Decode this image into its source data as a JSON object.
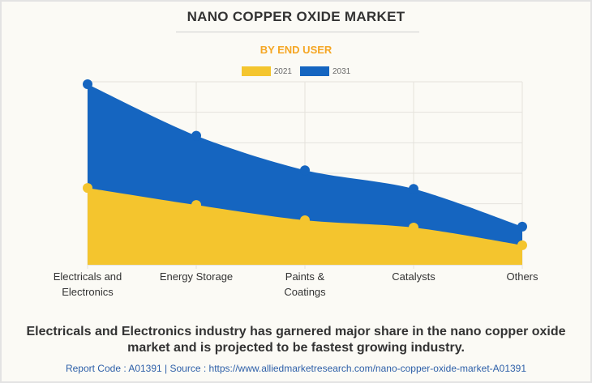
{
  "header": {
    "title": "NANO COPPER OXIDE MARKET",
    "subtitle": "BY END USER"
  },
  "colors": {
    "series_2021": "#f4c52e",
    "series_2031": "#1565c0",
    "subtitle": "#f5a623",
    "gridline": "#e4e2dc",
    "source_text": "#2d5fa8"
  },
  "chart_data": {
    "type": "area",
    "title": "NANO COPPER OXIDE MARKET",
    "subtitle": "BY END USER",
    "xlabel": "",
    "ylabel": "",
    "y_tick_labels_visible": false,
    "ylim": [
      0,
      6
    ],
    "grid": true,
    "legend_position": "top-center",
    "categories": [
      [
        "Electricals and",
        "Electronics"
      ],
      [
        "Energy Storage"
      ],
      [
        "Paints &",
        "Coatings"
      ],
      [
        "Catalysts"
      ],
      [
        "Others"
      ]
    ],
    "series": [
      {
        "name": "2031",
        "values": [
          5.92,
          4.23,
          3.1,
          2.49,
          1.25
        ]
      },
      {
        "name": "2021",
        "values": [
          2.52,
          1.96,
          1.46,
          1.22,
          0.64
        ]
      }
    ]
  },
  "legend": [
    {
      "label": "2021"
    },
    {
      "label": "2031"
    }
  ],
  "footer": {
    "caption": "Electricals and Electronics industry has garnered major share in the nano copper oxide market and is projected to be fastest growing industry.",
    "source": "Report Code : A01391  |  Source : https://www.alliedmarketresearch.com/nano-copper-oxide-market-A01391"
  }
}
